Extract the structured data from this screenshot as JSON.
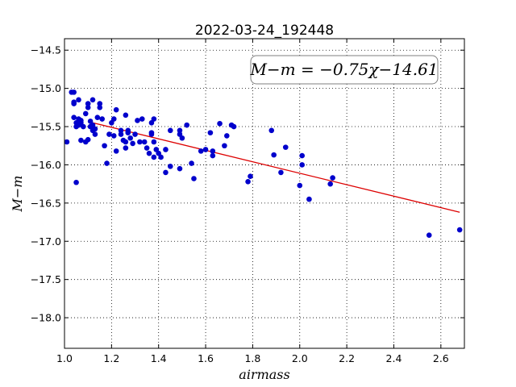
{
  "chart_data": {
    "type": "scatter",
    "title": "2022-03-24_192448",
    "xlabel": "airmass",
    "ylabel": "M−m",
    "xlim": [
      1.0,
      2.7
    ],
    "ylim": [
      -18.4,
      -14.35
    ],
    "x_ticks": [
      1.0,
      1.2,
      1.4,
      1.6,
      1.8,
      2.0,
      2.2,
      2.4,
      2.6
    ],
    "x_tick_labels": [
      "1.0",
      "1.2",
      "1.4",
      "1.6",
      "1.8",
      "2.0",
      "2.2",
      "2.4",
      "2.6"
    ],
    "y_ticks": [
      -14.5,
      -15.0,
      -15.5,
      -16.0,
      -16.5,
      -17.0,
      -17.5,
      -18.0
    ],
    "y_tick_labels": [
      "−14.5",
      "−15.0",
      "−15.5",
      "−16.0",
      "−16.5",
      "−17.0",
      "−17.5",
      "−18.0"
    ],
    "grid": true,
    "annotation": "M−m = −0.75χ−14.61",
    "point_color": "#0000cc",
    "fit_color": "#dd0000",
    "series": [
      {
        "values": [
          [
            1.01,
            -15.7
          ],
          [
            1.03,
            -15.05
          ],
          [
            1.04,
            -15.05
          ],
          [
            1.04,
            -15.2
          ],
          [
            1.04,
            -15.18
          ],
          [
            1.04,
            -15.38
          ],
          [
            1.05,
            -15.45
          ],
          [
            1.05,
            -15.5
          ],
          [
            1.05,
            -16.23
          ],
          [
            1.06,
            -15.15
          ],
          [
            1.06,
            -15.4
          ],
          [
            1.06,
            -15.48
          ],
          [
            1.07,
            -15.42
          ],
          [
            1.07,
            -15.45
          ],
          [
            1.07,
            -15.68
          ],
          [
            1.08,
            -15.5
          ],
          [
            1.09,
            -15.33
          ],
          [
            1.09,
            -15.7
          ],
          [
            1.1,
            -15.2
          ],
          [
            1.1,
            -15.25
          ],
          [
            1.1,
            -15.67
          ],
          [
            1.11,
            -15.43
          ],
          [
            1.11,
            -15.5
          ],
          [
            1.12,
            -15.15
          ],
          [
            1.12,
            -15.55
          ],
          [
            1.12,
            -15.48
          ],
          [
            1.13,
            -15.53
          ],
          [
            1.13,
            -15.6
          ],
          [
            1.14,
            -15.38
          ],
          [
            1.15,
            -15.2
          ],
          [
            1.15,
            -15.25
          ],
          [
            1.16,
            -15.4
          ],
          [
            1.17,
            -15.75
          ],
          [
            1.18,
            -15.98
          ],
          [
            1.19,
            -15.6
          ],
          [
            1.2,
            -15.45
          ],
          [
            1.21,
            -15.4
          ],
          [
            1.21,
            -15.62
          ],
          [
            1.22,
            -15.28
          ],
          [
            1.22,
            -15.82
          ],
          [
            1.24,
            -15.55
          ],
          [
            1.24,
            -15.6
          ],
          [
            1.25,
            -15.68
          ],
          [
            1.26,
            -15.35
          ],
          [
            1.26,
            -15.78
          ],
          [
            1.26,
            -15.7
          ],
          [
            1.27,
            -15.55
          ],
          [
            1.27,
            -15.58
          ],
          [
            1.28,
            -15.65
          ],
          [
            1.29,
            -15.72
          ],
          [
            1.3,
            -15.6
          ],
          [
            1.31,
            -15.42
          ],
          [
            1.32,
            -15.7
          ],
          [
            1.33,
            -15.4
          ],
          [
            1.34,
            -15.7
          ],
          [
            1.35,
            -15.78
          ],
          [
            1.36,
            -15.85
          ],
          [
            1.37,
            -15.6
          ],
          [
            1.37,
            -15.58
          ],
          [
            1.37,
            -15.45
          ],
          [
            1.38,
            -15.4
          ],
          [
            1.38,
            -15.7
          ],
          [
            1.38,
            -15.9
          ],
          [
            1.39,
            -15.8
          ],
          [
            1.4,
            -15.85
          ],
          [
            1.41,
            -15.9
          ],
          [
            1.43,
            -15.8
          ],
          [
            1.43,
            -16.1
          ],
          [
            1.45,
            -15.55
          ],
          [
            1.45,
            -16.02
          ],
          [
            1.49,
            -15.55
          ],
          [
            1.49,
            -15.6
          ],
          [
            1.49,
            -16.05
          ],
          [
            1.5,
            -15.65
          ],
          [
            1.52,
            -15.48
          ],
          [
            1.54,
            -15.98
          ],
          [
            1.55,
            -16.18
          ],
          [
            1.58,
            -15.82
          ],
          [
            1.6,
            -15.8
          ],
          [
            1.62,
            -15.58
          ],
          [
            1.63,
            -15.82
          ],
          [
            1.63,
            -15.88
          ],
          [
            1.66,
            -15.46
          ],
          [
            1.68,
            -15.75
          ],
          [
            1.69,
            -15.62
          ],
          [
            1.71,
            -15.48
          ],
          [
            1.72,
            -15.5
          ],
          [
            1.78,
            -16.22
          ],
          [
            1.79,
            -16.15
          ],
          [
            1.88,
            -15.55
          ],
          [
            1.89,
            -15.87
          ],
          [
            1.92,
            -16.1
          ],
          [
            1.94,
            -15.77
          ],
          [
            2.0,
            -16.27
          ],
          [
            2.01,
            -15.88
          ],
          [
            2.01,
            -16.0
          ],
          [
            2.04,
            -16.45
          ],
          [
            2.13,
            -16.25
          ],
          [
            2.14,
            -16.17
          ],
          [
            2.55,
            -16.92
          ],
          [
            2.68,
            -16.85
          ]
        ]
      }
    ],
    "fit_line": {
      "slope": -0.75,
      "intercept": -14.61,
      "x_range": [
        1.1,
        2.68
      ]
    }
  }
}
